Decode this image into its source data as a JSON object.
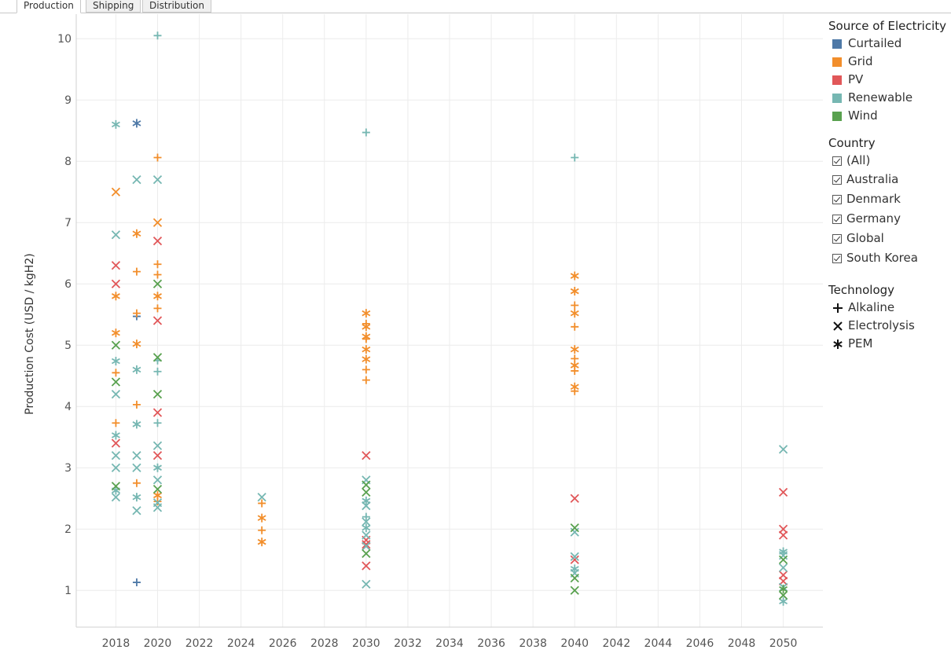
{
  "tabs": [
    {
      "label": "Production",
      "active": true
    },
    {
      "label": "Shipping",
      "active": false
    },
    {
      "label": "Distribution",
      "active": false
    }
  ],
  "legend": {
    "source_title": "Source of Electricity",
    "sources": [
      {
        "label": "Curtailed",
        "color": "#4e79a7"
      },
      {
        "label": "Grid",
        "color": "#f28e2b"
      },
      {
        "label": "PV",
        "color": "#e15759"
      },
      {
        "label": "Renewable",
        "color": "#76b7b2"
      },
      {
        "label": "Wind",
        "color": "#59a14f"
      }
    ],
    "country_title": "Country",
    "countries": [
      "(All)",
      "Australia",
      "Denmark",
      "Germany",
      "Global",
      "South Korea"
    ],
    "technology_title": "Technology",
    "technologies": [
      {
        "label": "Alkaline",
        "shape": "plus-icon"
      },
      {
        "label": "Electrolysis",
        "shape": "cross-icon"
      },
      {
        "label": "PEM",
        "shape": "asterisk-icon"
      }
    ]
  },
  "chart_data": {
    "type": "scatter",
    "ylabel": "Production Cost (USD / kgH2)",
    "xlim": [
      2016.1,
      2051.9
    ],
    "ylim": [
      0.4,
      10.4
    ],
    "xticks": [
      2018,
      2020,
      2022,
      2024,
      2026,
      2028,
      2030,
      2032,
      2034,
      2036,
      2038,
      2040,
      2042,
      2044,
      2046,
      2048,
      2050
    ],
    "yticks": [
      1,
      2,
      3,
      4,
      5,
      6,
      7,
      8,
      9,
      10
    ],
    "grid": true,
    "series": [
      {
        "name": "Curtailed",
        "color": "#4e79a7",
        "points": [
          {
            "x": 2019,
            "y": 8.62,
            "m": "asterisk"
          },
          {
            "x": 2019,
            "y": 5.47,
            "m": "plus"
          },
          {
            "x": 2019,
            "y": 1.13,
            "m": "plus"
          }
        ]
      },
      {
        "name": "Grid",
        "color": "#f28e2b",
        "points": [
          {
            "x": 2018,
            "y": 7.5,
            "m": "cross"
          },
          {
            "x": 2018,
            "y": 5.8,
            "m": "asterisk"
          },
          {
            "x": 2018,
            "y": 5.2,
            "m": "asterisk"
          },
          {
            "x": 2018,
            "y": 4.55,
            "m": "plus"
          },
          {
            "x": 2018,
            "y": 3.73,
            "m": "plus"
          },
          {
            "x": 2019,
            "y": 6.82,
            "m": "asterisk"
          },
          {
            "x": 2019,
            "y": 6.2,
            "m": "plus"
          },
          {
            "x": 2019,
            "y": 5.52,
            "m": "plus"
          },
          {
            "x": 2019,
            "y": 5.02,
            "m": "asterisk"
          },
          {
            "x": 2019,
            "y": 4.03,
            "m": "plus"
          },
          {
            "x": 2019,
            "y": 2.75,
            "m": "plus"
          },
          {
            "x": 2020,
            "y": 8.06,
            "m": "plus"
          },
          {
            "x": 2020,
            "y": 7.0,
            "m": "cross"
          },
          {
            "x": 2020,
            "y": 6.32,
            "m": "plus"
          },
          {
            "x": 2020,
            "y": 6.15,
            "m": "plus"
          },
          {
            "x": 2020,
            "y": 5.8,
            "m": "asterisk"
          },
          {
            "x": 2020,
            "y": 5.6,
            "m": "plus"
          },
          {
            "x": 2020,
            "y": 2.55,
            "m": "asterisk"
          },
          {
            "x": 2020,
            "y": 2.45,
            "m": "plus"
          },
          {
            "x": 2025,
            "y": 2.42,
            "m": "plus"
          },
          {
            "x": 2025,
            "y": 2.18,
            "m": "asterisk"
          },
          {
            "x": 2025,
            "y": 1.98,
            "m": "plus"
          },
          {
            "x": 2025,
            "y": 1.79,
            "m": "asterisk"
          },
          {
            "x": 2030,
            "y": 5.52,
            "m": "asterisk"
          },
          {
            "x": 2030,
            "y": 5.35,
            "m": "plus"
          },
          {
            "x": 2030,
            "y": 5.3,
            "m": "asterisk"
          },
          {
            "x": 2030,
            "y": 5.14,
            "m": "asterisk"
          },
          {
            "x": 2030,
            "y": 5.1,
            "m": "plus"
          },
          {
            "x": 2030,
            "y": 4.93,
            "m": "asterisk"
          },
          {
            "x": 2030,
            "y": 4.77,
            "m": "asterisk"
          },
          {
            "x": 2030,
            "y": 4.6,
            "m": "plus"
          },
          {
            "x": 2030,
            "y": 4.43,
            "m": "plus"
          },
          {
            "x": 2040,
            "y": 6.13,
            "m": "asterisk"
          },
          {
            "x": 2040,
            "y": 5.88,
            "m": "asterisk"
          },
          {
            "x": 2040,
            "y": 5.65,
            "m": "plus"
          },
          {
            "x": 2040,
            "y": 5.52,
            "m": "asterisk"
          },
          {
            "x": 2040,
            "y": 5.3,
            "m": "plus"
          },
          {
            "x": 2040,
            "y": 4.93,
            "m": "asterisk"
          },
          {
            "x": 2040,
            "y": 4.78,
            "m": "plus"
          },
          {
            "x": 2040,
            "y": 4.67,
            "m": "asterisk"
          },
          {
            "x": 2040,
            "y": 4.58,
            "m": "plus"
          },
          {
            "x": 2040,
            "y": 4.32,
            "m": "asterisk"
          },
          {
            "x": 2040,
            "y": 4.25,
            "m": "plus"
          }
        ]
      },
      {
        "name": "PV",
        "color": "#e15759",
        "points": [
          {
            "x": 2018,
            "y": 6.3,
            "m": "cross"
          },
          {
            "x": 2018,
            "y": 6.0,
            "m": "cross"
          },
          {
            "x": 2018,
            "y": 3.4,
            "m": "cross"
          },
          {
            "x": 2020,
            "y": 6.7,
            "m": "cross"
          },
          {
            "x": 2020,
            "y": 5.4,
            "m": "cross"
          },
          {
            "x": 2020,
            "y": 3.9,
            "m": "cross"
          },
          {
            "x": 2020,
            "y": 3.2,
            "m": "cross"
          },
          {
            "x": 2030,
            "y": 3.2,
            "m": "cross"
          },
          {
            "x": 2030,
            "y": 1.82,
            "m": "cross"
          },
          {
            "x": 2030,
            "y": 1.75,
            "m": "cross"
          },
          {
            "x": 2030,
            "y": 1.4,
            "m": "cross"
          },
          {
            "x": 2040,
            "y": 2.5,
            "m": "cross"
          },
          {
            "x": 2040,
            "y": 1.5,
            "m": "cross"
          },
          {
            "x": 2050,
            "y": 2.6,
            "m": "cross"
          },
          {
            "x": 2050,
            "y": 2.0,
            "m": "cross"
          },
          {
            "x": 2050,
            "y": 1.9,
            "m": "cross"
          },
          {
            "x": 2050,
            "y": 1.25,
            "m": "cross"
          },
          {
            "x": 2050,
            "y": 1.15,
            "m": "cross"
          }
        ]
      },
      {
        "name": "Renewable",
        "color": "#76b7b2",
        "points": [
          {
            "x": 2018,
            "y": 8.6,
            "m": "asterisk"
          },
          {
            "x": 2018,
            "y": 6.8,
            "m": "cross"
          },
          {
            "x": 2018,
            "y": 4.74,
            "m": "asterisk"
          },
          {
            "x": 2018,
            "y": 4.2,
            "m": "cross"
          },
          {
            "x": 2018,
            "y": 3.53,
            "m": "asterisk"
          },
          {
            "x": 2018,
            "y": 3.2,
            "m": "cross"
          },
          {
            "x": 2018,
            "y": 3.0,
            "m": "cross"
          },
          {
            "x": 2018,
            "y": 2.63,
            "m": "asterisk"
          },
          {
            "x": 2018,
            "y": 2.52,
            "m": "cross"
          },
          {
            "x": 2019,
            "y": 7.7,
            "m": "cross"
          },
          {
            "x": 2019,
            "y": 4.6,
            "m": "asterisk"
          },
          {
            "x": 2019,
            "y": 3.71,
            "m": "asterisk"
          },
          {
            "x": 2019,
            "y": 3.2,
            "m": "cross"
          },
          {
            "x": 2019,
            "y": 3.0,
            "m": "cross"
          },
          {
            "x": 2019,
            "y": 2.52,
            "m": "asterisk"
          },
          {
            "x": 2019,
            "y": 2.3,
            "m": "cross"
          },
          {
            "x": 2020,
            "y": 10.05,
            "m": "plus"
          },
          {
            "x": 2020,
            "y": 7.7,
            "m": "cross"
          },
          {
            "x": 2020,
            "y": 4.75,
            "m": "plus"
          },
          {
            "x": 2020,
            "y": 4.57,
            "m": "plus"
          },
          {
            "x": 2020,
            "y": 3.73,
            "m": "plus"
          },
          {
            "x": 2020,
            "y": 3.36,
            "m": "cross"
          },
          {
            "x": 2020,
            "y": 3.0,
            "m": "asterisk"
          },
          {
            "x": 2020,
            "y": 2.8,
            "m": "cross"
          },
          {
            "x": 2020,
            "y": 2.43,
            "m": "cross"
          },
          {
            "x": 2020,
            "y": 2.35,
            "m": "cross"
          },
          {
            "x": 2025,
            "y": 2.52,
            "m": "cross"
          },
          {
            "x": 2030,
            "y": 8.47,
            "m": "plus"
          },
          {
            "x": 2030,
            "y": 2.8,
            "m": "cross"
          },
          {
            "x": 2030,
            "y": 2.46,
            "m": "asterisk"
          },
          {
            "x": 2030,
            "y": 2.38,
            "m": "cross"
          },
          {
            "x": 2030,
            "y": 2.2,
            "m": "plus"
          },
          {
            "x": 2030,
            "y": 2.12,
            "m": "cross"
          },
          {
            "x": 2030,
            "y": 2.02,
            "m": "asterisk"
          },
          {
            "x": 2030,
            "y": 1.9,
            "m": "cross"
          },
          {
            "x": 2030,
            "y": 1.72,
            "m": "cross"
          },
          {
            "x": 2030,
            "y": 1.1,
            "m": "cross"
          },
          {
            "x": 2040,
            "y": 8.06,
            "m": "plus"
          },
          {
            "x": 2040,
            "y": 1.95,
            "m": "cross"
          },
          {
            "x": 2040,
            "y": 1.55,
            "m": "cross"
          },
          {
            "x": 2040,
            "y": 1.35,
            "m": "asterisk"
          },
          {
            "x": 2040,
            "y": 1.28,
            "m": "cross"
          },
          {
            "x": 2050,
            "y": 3.3,
            "m": "cross"
          },
          {
            "x": 2050,
            "y": 1.63,
            "m": "asterisk"
          },
          {
            "x": 2050,
            "y": 1.57,
            "m": "cross"
          },
          {
            "x": 2050,
            "y": 1.37,
            "m": "cross"
          },
          {
            "x": 2050,
            "y": 1.05,
            "m": "cross"
          },
          {
            "x": 2050,
            "y": 0.82,
            "m": "asterisk"
          }
        ]
      },
      {
        "name": "Wind",
        "color": "#59a14f",
        "points": [
          {
            "x": 2018,
            "y": 5.0,
            "m": "cross"
          },
          {
            "x": 2018,
            "y": 4.4,
            "m": "cross"
          },
          {
            "x": 2018,
            "y": 2.7,
            "m": "cross"
          },
          {
            "x": 2020,
            "y": 6.0,
            "m": "cross"
          },
          {
            "x": 2020,
            "y": 4.8,
            "m": "cross"
          },
          {
            "x": 2020,
            "y": 4.2,
            "m": "cross"
          },
          {
            "x": 2020,
            "y": 2.65,
            "m": "cross"
          },
          {
            "x": 2030,
            "y": 2.72,
            "m": "cross"
          },
          {
            "x": 2030,
            "y": 2.6,
            "m": "cross"
          },
          {
            "x": 2030,
            "y": 1.6,
            "m": "cross"
          },
          {
            "x": 2040,
            "y": 2.02,
            "m": "cross"
          },
          {
            "x": 2040,
            "y": 1.2,
            "m": "cross"
          },
          {
            "x": 2040,
            "y": 1.0,
            "m": "cross"
          },
          {
            "x": 2050,
            "y": 1.5,
            "m": "cross"
          },
          {
            "x": 2050,
            "y": 1.02,
            "m": "asterisk"
          },
          {
            "x": 2050,
            "y": 0.92,
            "m": "cross"
          }
        ]
      }
    ]
  }
}
